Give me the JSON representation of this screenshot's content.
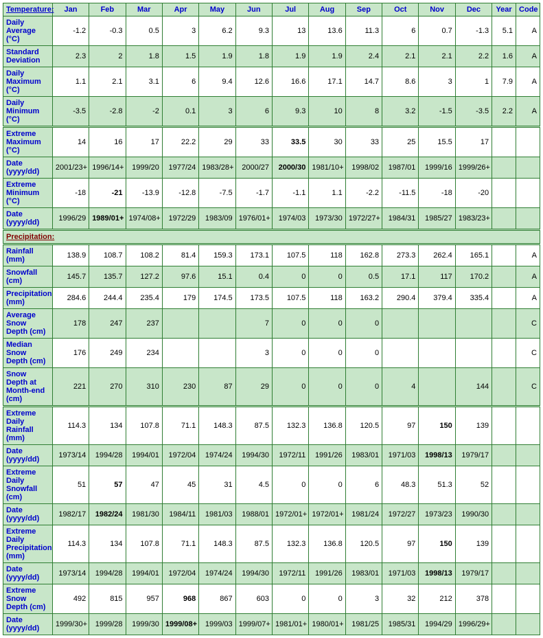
{
  "headers": {
    "section_temp": "Temperature:",
    "section_precip": "Precipitation:",
    "months": [
      "Jan",
      "Feb",
      "Mar",
      "Apr",
      "May",
      "Jun",
      "Jul",
      "Aug",
      "Sep",
      "Oct",
      "Nov",
      "Dec"
    ],
    "year": "Year",
    "code": "Code"
  },
  "rows": [
    {
      "label": "Daily Average (°C)",
      "shade": "white",
      "vals": [
        "-1.2",
        "-0.3",
        "0.5",
        "3",
        "6.2",
        "9.3",
        "13",
        "13.6",
        "11.3",
        "6",
        "0.7",
        "-1.3",
        "5.1",
        "A"
      ]
    },
    {
      "label": "Standard Deviation",
      "shade": "green",
      "vals": [
        "2.3",
        "2",
        "1.8",
        "1.5",
        "1.9",
        "1.8",
        "1.9",
        "1.9",
        "2.4",
        "2.1",
        "2.1",
        "2.2",
        "1.6",
        "A"
      ]
    },
    {
      "label": "Daily Maximum (°C)",
      "shade": "white",
      "vals": [
        "1.1",
        "2.1",
        "3.1",
        "6",
        "9.4",
        "12.6",
        "16.6",
        "17.1",
        "14.7",
        "8.6",
        "3",
        "1",
        "7.9",
        "A"
      ]
    },
    {
      "label": "Daily Minimum (°C)",
      "shade": "green",
      "vals": [
        "-3.5",
        "-2.8",
        "-2",
        "0.1",
        "3",
        "6",
        "9.3",
        "10",
        "8",
        "3.2",
        "-1.5",
        "-3.5",
        "2.2",
        "A"
      ],
      "divider_after": true
    },
    {
      "label": "Extreme Maximum (°C)",
      "shade": "white",
      "vals": [
        "14",
        "16",
        "17",
        "22.2",
        "29",
        "33",
        "33.5",
        "30",
        "33",
        "25",
        "15.5",
        "17",
        "",
        ""
      ],
      "bold": [
        6
      ]
    },
    {
      "label": "Date (yyyy/dd)",
      "shade": "green",
      "vals": [
        "2001/23+",
        "1996/14+",
        "1999/20",
        "1977/24",
        "1983/28+",
        "2000/27",
        "2000/30",
        "1981/10+",
        "1998/02",
        "1987/01",
        "1999/16",
        "1999/26+",
        "",
        ""
      ],
      "bold": [
        6
      ]
    },
    {
      "label": "Extreme Minimum (°C)",
      "shade": "white",
      "vals": [
        "-18",
        "-21",
        "-13.9",
        "-12.8",
        "-7.5",
        "-1.7",
        "-1.1",
        "1.1",
        "-2.2",
        "-11.5",
        "-18",
        "-20",
        "",
        ""
      ],
      "bold": [
        1
      ]
    },
    {
      "label": "Date (yyyy/dd)",
      "shade": "green",
      "vals": [
        "1996/29",
        "1989/01+",
        "1974/08+",
        "1972/29",
        "1983/09",
        "1976/01+",
        "1974/03",
        "1973/30",
        "1972/27+",
        "1984/31",
        "1985/27",
        "1983/23+",
        "",
        ""
      ],
      "bold": [
        1
      ]
    }
  ],
  "rows2": [
    {
      "label": "Rainfall (mm)",
      "shade": "white",
      "vals": [
        "138.9",
        "108.7",
        "108.2",
        "81.4",
        "159.3",
        "173.1",
        "107.5",
        "118",
        "162.8",
        "273.3",
        "262.4",
        "165.1",
        "",
        "A"
      ]
    },
    {
      "label": "Snowfall (cm)",
      "shade": "green",
      "vals": [
        "145.7",
        "135.7",
        "127.2",
        "97.6",
        "15.1",
        "0.4",
        "0",
        "0",
        "0.5",
        "17.1",
        "117",
        "170.2",
        "",
        "A"
      ]
    },
    {
      "label": "Precipitation (mm)",
      "shade": "white",
      "vals": [
        "284.6",
        "244.4",
        "235.4",
        "179",
        "174.5",
        "173.5",
        "107.5",
        "118",
        "163.2",
        "290.4",
        "379.4",
        "335.4",
        "",
        "A"
      ]
    },
    {
      "label": "Average Snow Depth (cm)",
      "shade": "green",
      "vals": [
        "178",
        "247",
        "237",
        "",
        "",
        "7",
        "0",
        "0",
        "0",
        "",
        "",
        "",
        "",
        "C"
      ]
    },
    {
      "label": "Median Snow Depth (cm)",
      "shade": "white",
      "vals": [
        "176",
        "249",
        "234",
        "",
        "",
        "3",
        "0",
        "0",
        "0",
        "",
        "",
        "",
        "",
        "C"
      ]
    },
    {
      "label": "Snow Depth at Month-end (cm)",
      "shade": "green",
      "vals": [
        "221",
        "270",
        "310",
        "230",
        "87",
        "29",
        "0",
        "0",
        "0",
        "4",
        "",
        "144",
        "",
        "C"
      ],
      "divider_after": true
    },
    {
      "label": "Extreme Daily Rainfall (mm)",
      "shade": "white",
      "vals": [
        "114.3",
        "134",
        "107.8",
        "71.1",
        "148.3",
        "87.5",
        "132.3",
        "136.8",
        "120.5",
        "97",
        "150",
        "139",
        "",
        ""
      ],
      "bold": [
        10
      ]
    },
    {
      "label": "Date (yyyy/dd)",
      "shade": "green",
      "vals": [
        "1973/14",
        "1994/28",
        "1994/01",
        "1972/04",
        "1974/24",
        "1994/30",
        "1972/11",
        "1991/26",
        "1983/01",
        "1971/03",
        "1998/13",
        "1979/17",
        "",
        ""
      ],
      "bold": [
        10
      ]
    },
    {
      "label": "Extreme Daily Snowfall (cm)",
      "shade": "white",
      "vals": [
        "51",
        "57",
        "47",
        "45",
        "31",
        "4.5",
        "0",
        "0",
        "6",
        "48.3",
        "51.3",
        "52",
        "",
        ""
      ],
      "bold": [
        1
      ]
    },
    {
      "label": "Date (yyyy/dd)",
      "shade": "green",
      "vals": [
        "1982/17",
        "1982/24",
        "1981/30",
        "1984/11",
        "1981/03",
        "1988/01",
        "1972/01+",
        "1972/01+",
        "1981/24",
        "1972/27",
        "1973/23",
        "1990/30",
        "",
        ""
      ],
      "bold": [
        1
      ]
    },
    {
      "label": "Extreme Daily Precipitation (mm)",
      "shade": "white",
      "vals": [
        "114.3",
        "134",
        "107.8",
        "71.1",
        "148.3",
        "87.5",
        "132.3",
        "136.8",
        "120.5",
        "97",
        "150",
        "139",
        "",
        ""
      ],
      "bold": [
        10
      ]
    },
    {
      "label": "Date (yyyy/dd)",
      "shade": "green",
      "vals": [
        "1973/14",
        "1994/28",
        "1994/01",
        "1972/04",
        "1974/24",
        "1994/30",
        "1972/11",
        "1991/26",
        "1983/01",
        "1971/03",
        "1998/13",
        "1979/17",
        "",
        ""
      ],
      "bold": [
        10
      ]
    },
    {
      "label": "Extreme Snow Depth (cm)",
      "shade": "white",
      "vals": [
        "492",
        "815",
        "957",
        "968",
        "867",
        "603",
        "0",
        "0",
        "3",
        "32",
        "212",
        "378",
        "",
        ""
      ],
      "bold": [
        3
      ]
    },
    {
      "label": "Date (yyyy/dd)",
      "shade": "green",
      "vals": [
        "1999/30+",
        "1999/28",
        "1999/30",
        "1999/08+",
        "1999/03",
        "1999/07+",
        "1981/01+",
        "1980/01+",
        "1981/25",
        "1985/31",
        "1994/29",
        "1996/29+",
        "",
        ""
      ],
      "bold": [
        3
      ]
    }
  ]
}
